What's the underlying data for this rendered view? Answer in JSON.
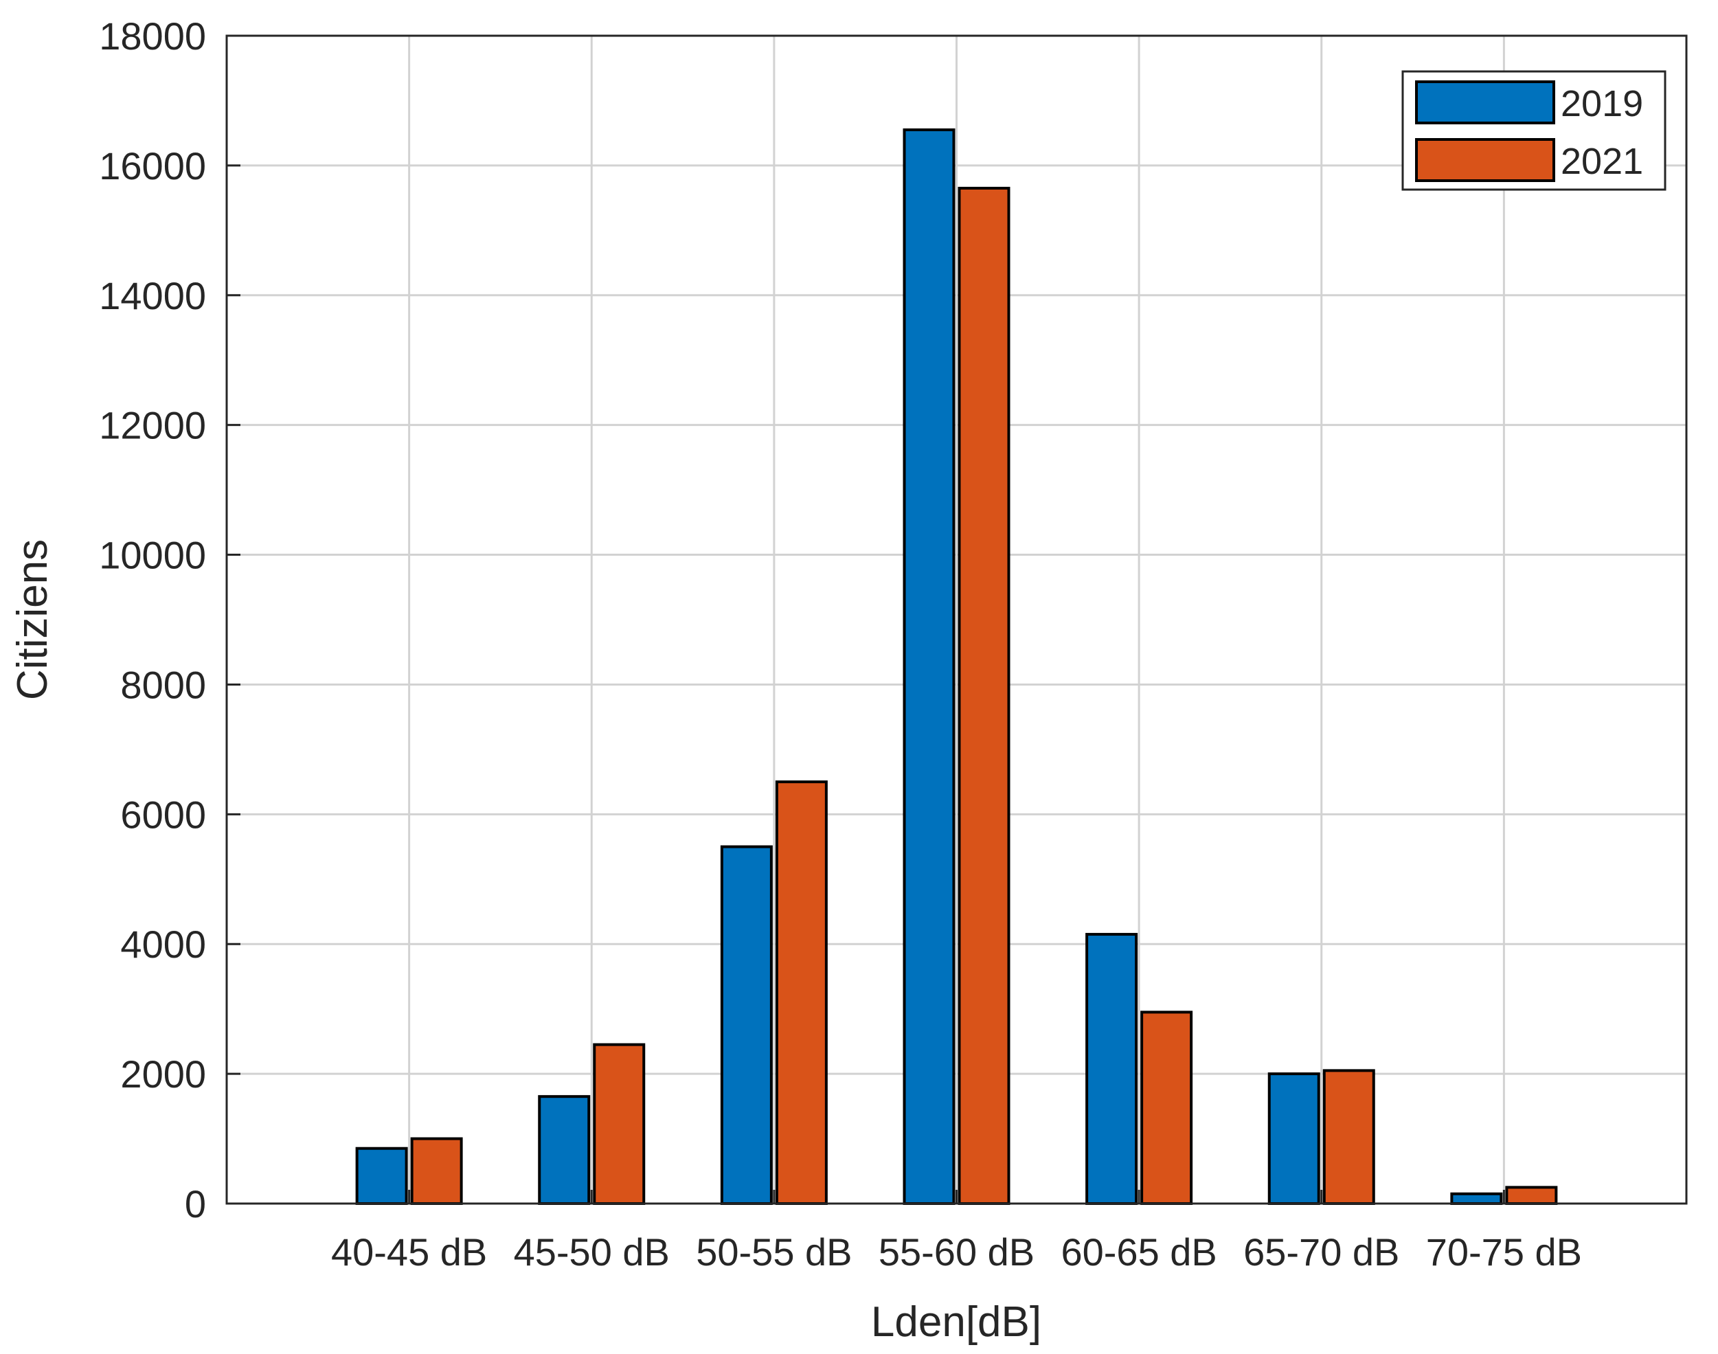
{
  "chart_data": {
    "type": "bar",
    "title": "",
    "xlabel": "Lden[dB]",
    "ylabel": "Citiziens",
    "categories": [
      "40-45 dB",
      "45-50 dB",
      "50-55 dB",
      "55-60 dB",
      "60-65 dB",
      "65-70 dB",
      "70-75 dB"
    ],
    "series": [
      {
        "name": "2019",
        "color": "#0072BD",
        "values": [
          850,
          1650,
          5500,
          16550,
          4150,
          2000,
          150
        ]
      },
      {
        "name": "2021",
        "color": "#D95319",
        "values": [
          1000,
          2450,
          6500,
          15650,
          2950,
          2050,
          250
        ]
      }
    ],
    "ylim": [
      0,
      18000
    ],
    "yticks": [
      0,
      2000,
      4000,
      6000,
      8000,
      10000,
      12000,
      14000,
      16000,
      18000
    ],
    "grid": true,
    "legend_position": "top-right"
  }
}
